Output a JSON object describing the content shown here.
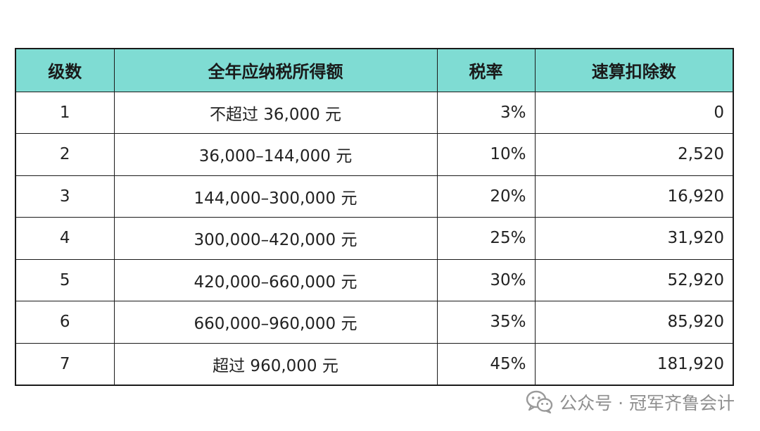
{
  "table": {
    "headers": [
      "级数",
      "全年应纳税所得额",
      "税率",
      "速算扣除数"
    ],
    "rows": [
      {
        "level": "1",
        "range": "不超过 36,000 元",
        "rate": "3%",
        "deduction": "0"
      },
      {
        "level": "2",
        "range": "36,000–144,000 元",
        "rate": "10%",
        "deduction": "2,520"
      },
      {
        "level": "3",
        "range": "144,000–300,000 元",
        "rate": "20%",
        "deduction": "16,920"
      },
      {
        "level": "4",
        "range": "300,000–420,000 元",
        "rate": "25%",
        "deduction": "31,920"
      },
      {
        "level": "5",
        "range": "420,000–660,000 元",
        "rate": "30%",
        "deduction": "52,920"
      },
      {
        "level": "6",
        "range": "660,000–960,000 元",
        "rate": "35%",
        "deduction": "85,920"
      },
      {
        "level": "7",
        "range": "超过 960,000 元",
        "rate": "45%",
        "deduction": "181,920"
      }
    ]
  },
  "watermark": {
    "icon": "wechat-icon",
    "text": "公众号 · 冠军齐鲁会计"
  },
  "colors": {
    "header_bg": "#7fdcd3",
    "border": "#1a1a1a",
    "watermark": "#8f8f8f"
  }
}
